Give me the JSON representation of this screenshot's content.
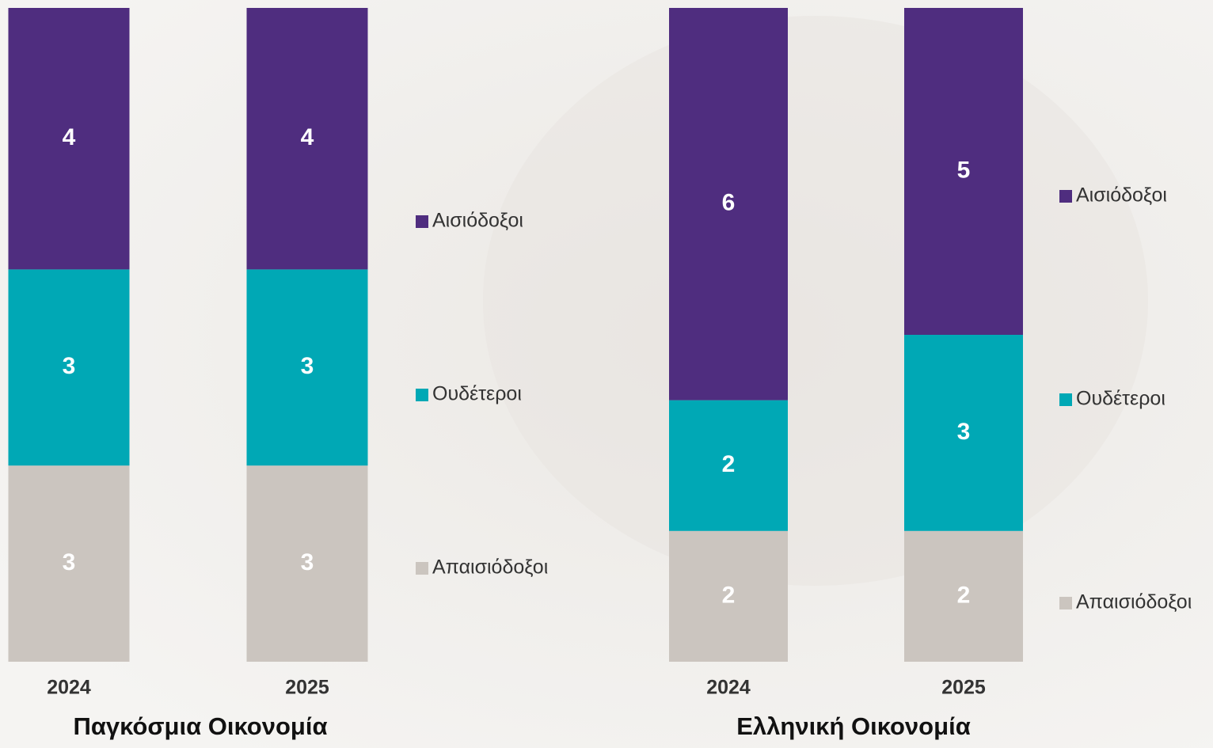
{
  "chart_data": [
    {
      "type": "bar",
      "stacked": true,
      "title": "Παγκόσμια Οικονομία",
      "categories": [
        "2024",
        "2025"
      ],
      "series": [
        {
          "name": "Απαισιόδοξοι",
          "color": "#cbc5bf",
          "values": [
            3,
            3
          ]
        },
        {
          "name": "Ουδέτεροι",
          "color": "#00a8b5",
          "values": [
            3,
            3
          ]
        },
        {
          "name": "Αισιόδοξοι",
          "color": "#4f2d7f",
          "values": [
            4,
            4
          ]
        }
      ]
    },
    {
      "type": "bar",
      "stacked": true,
      "title": "Ελληνική Οικονομία",
      "categories": [
        "2024",
        "2025"
      ],
      "series": [
        {
          "name": "Απαισιόδοξοι",
          "color": "#cbc5bf",
          "values": [
            2,
            2
          ]
        },
        {
          "name": "Ουδέτεροι",
          "color": "#00a8b5",
          "values": [
            2,
            3
          ]
        },
        {
          "name": "Αισιόδοξοι",
          "color": "#4f2d7f",
          "values": [
            6,
            5
          ]
        }
      ]
    }
  ]
}
